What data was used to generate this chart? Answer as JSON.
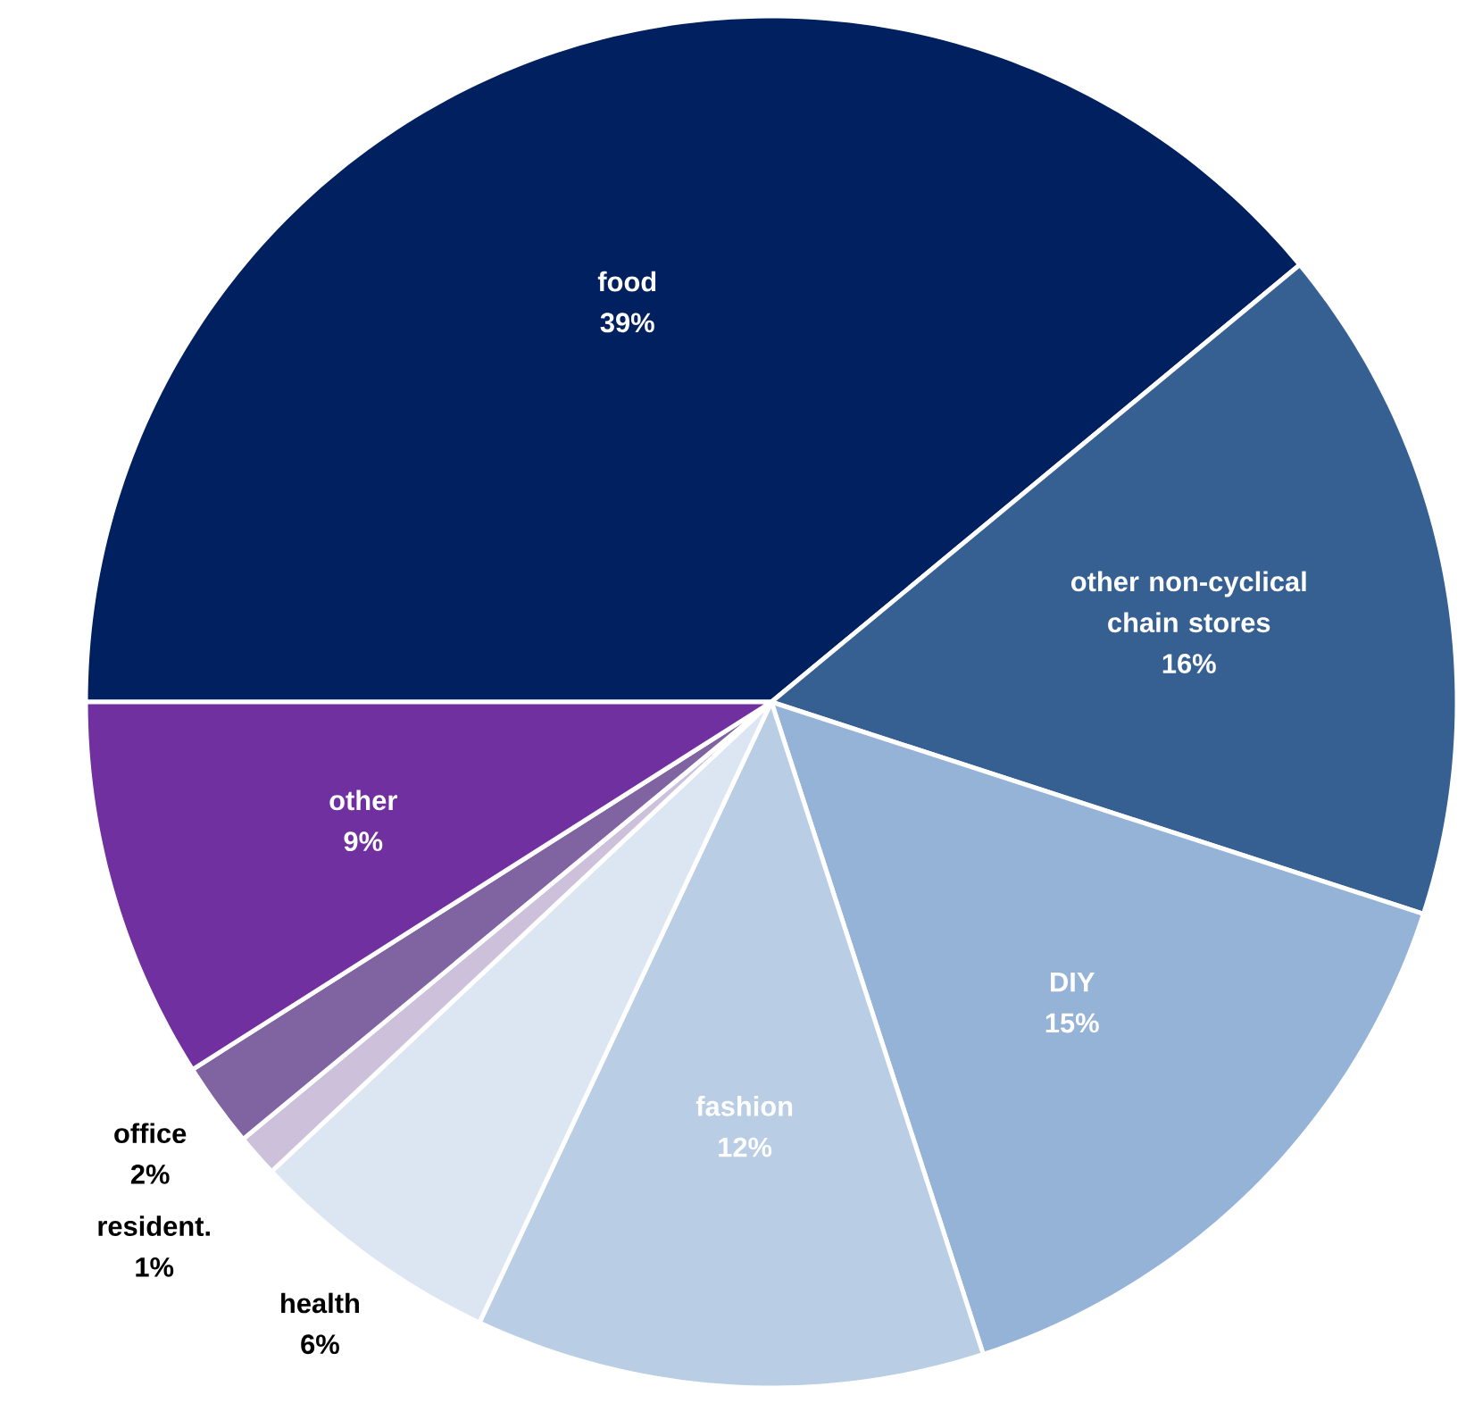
{
  "chart_data": {
    "type": "pie",
    "categories": [
      "food",
      "other non-cyclical chain stores",
      "DIY",
      "fashion",
      "health",
      "resident.",
      "office",
      "other"
    ],
    "values": [
      39,
      16,
      15,
      12,
      6,
      1,
      2,
      9
    ],
    "colors": [
      "#002060",
      "#376092",
      "#95b3d7",
      "#b9cde5",
      "#dce6f2",
      "#ccc0da",
      "#8064a2",
      "#7030a0"
    ],
    "value_labels": [
      "39%",
      "16%",
      "15%",
      "12%",
      "6%",
      "1%",
      "2%",
      "9%"
    ]
  }
}
